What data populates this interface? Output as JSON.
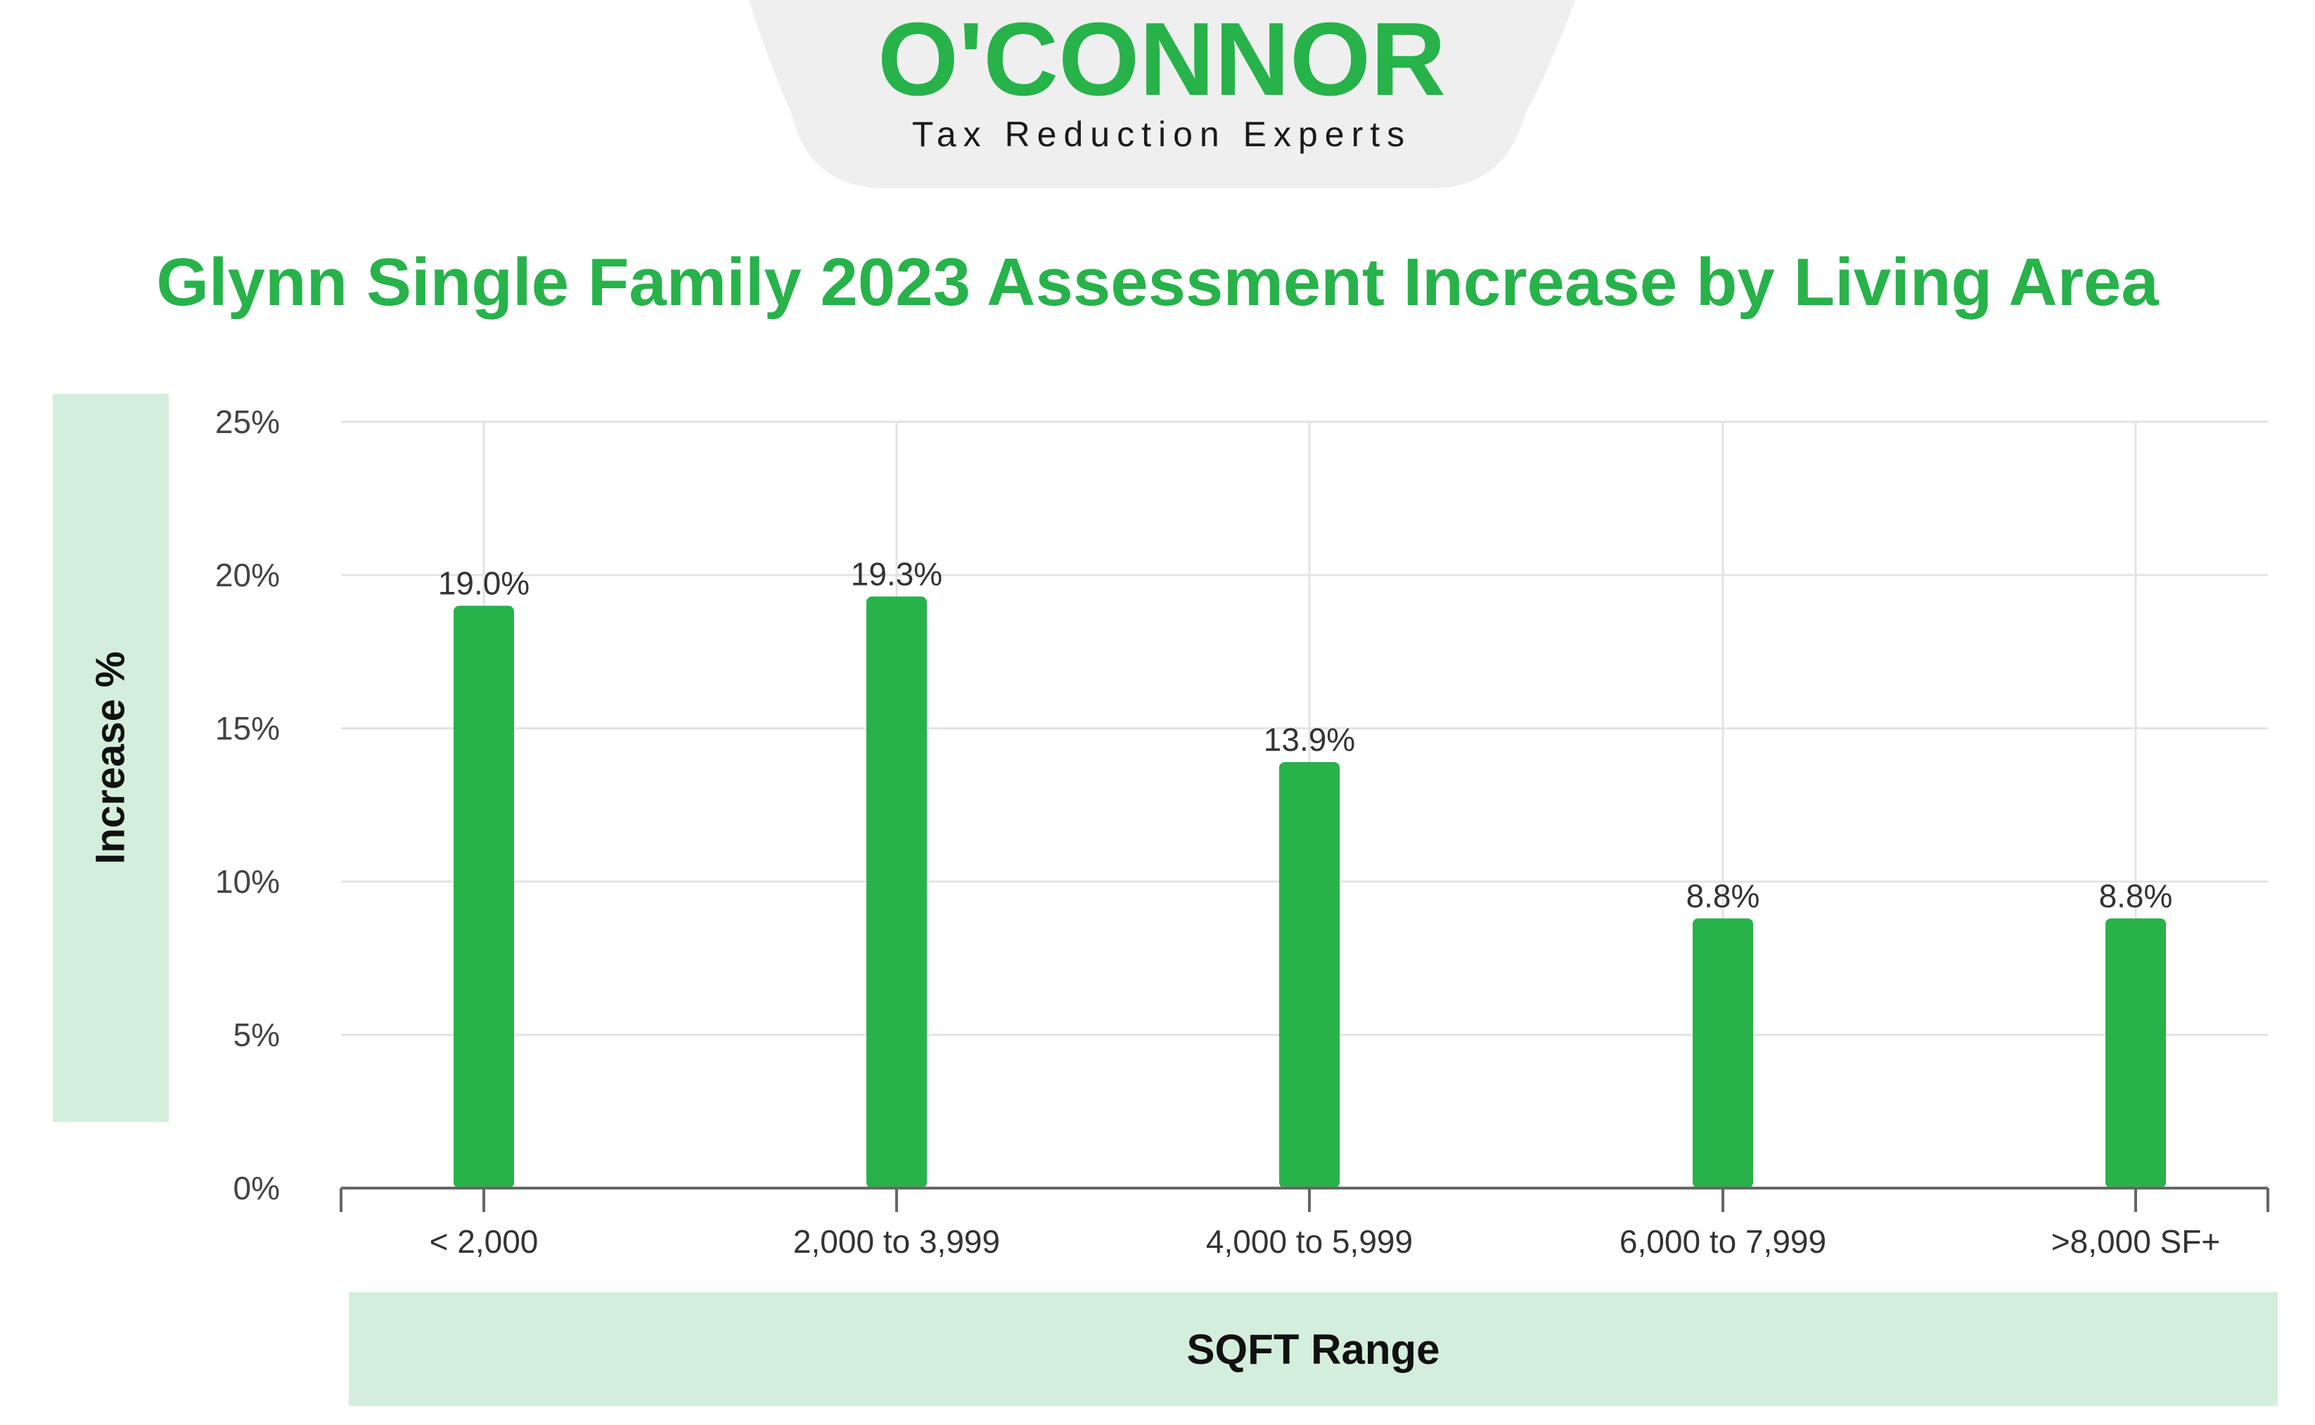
{
  "brand": {
    "name": "O'CONNOR",
    "tagline": "Tax Reduction Experts",
    "color": "#27b24a"
  },
  "chart_data": {
    "type": "bar",
    "title": "Glynn Single Family 2023 Assessment Increase by Living Area",
    "xlabel": "SQFT Range",
    "ylabel": "Increase %",
    "categories": [
      "< 2,000",
      "2,000 to 3,999",
      "4,000 to 5,999",
      "6,000 to 7,999",
      ">8,000 SF+"
    ],
    "values": [
      19.0,
      19.3,
      13.9,
      8.8,
      8.8
    ],
    "value_labels": [
      "19.0%",
      "19.3%",
      "13.9%",
      "8.8%",
      "8.8%"
    ],
    "ylim": [
      0,
      25
    ],
    "yticks": [
      0,
      5,
      10,
      15,
      20,
      25
    ],
    "ytick_labels": [
      "0%",
      "5%",
      "10%",
      "15%",
      "20%",
      "25%"
    ],
    "grid": true,
    "bar_color": "#27b24a"
  }
}
